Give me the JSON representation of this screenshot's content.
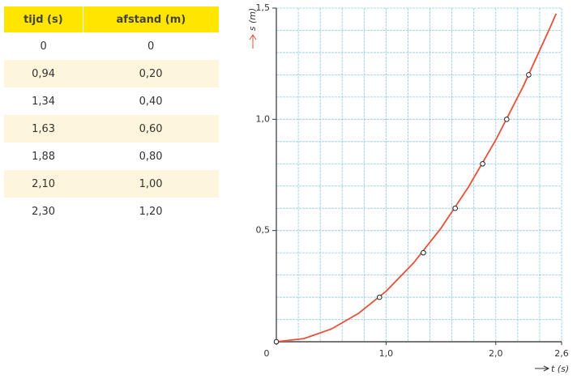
{
  "table": {
    "header": [
      "tijd (s)",
      "afstand (m)"
    ],
    "rows": [
      [
        "0",
        "0"
      ],
      [
        "0,94",
        "0,20"
      ],
      [
        "1,34",
        "0,40"
      ],
      [
        "1,63",
        "0,60"
      ],
      [
        "1,88",
        "0,80"
      ],
      [
        "2,10",
        "1,00"
      ],
      [
        "2,30",
        "1,20"
      ]
    ]
  },
  "chart_data": {
    "type": "scatter",
    "x_label": "t (s)",
    "y_label": "s (m)",
    "xlim": [
      0,
      2.6
    ],
    "ylim": [
      0,
      1.5
    ],
    "xticks": [
      0,
      {
        "value": 1,
        "label": "1,0"
      },
      {
        "value": 2,
        "label": "2,0"
      },
      {
        "value": 2.6,
        "label": "2,6"
      }
    ],
    "yticks": [
      {
        "value": 0.5,
        "label": "0,5"
      },
      {
        "value": 1,
        "label": "1,0"
      },
      {
        "value": 1.5,
        "label": "1,5"
      }
    ],
    "grid": true,
    "series": [
      {
        "type": "scatter",
        "color": "#222222",
        "x": [
          0,
          0.94,
          1.34,
          1.63,
          1.88,
          2.1,
          2.3
        ],
        "values": [
          0,
          0.2,
          0.4,
          0.6,
          0.8,
          1.0,
          1.2
        ]
      },
      {
        "type": "line",
        "color": "#e8503a",
        "x": [
          0,
          0.25,
          0.5,
          0.75,
          1,
          1.25,
          1.5,
          1.75,
          2,
          2.25,
          2.5,
          2.55
        ],
        "values": [
          0,
          0.014,
          0.057,
          0.128,
          0.227,
          0.354,
          0.51,
          0.695,
          0.907,
          1.148,
          1.418,
          1.475
        ]
      }
    ]
  }
}
